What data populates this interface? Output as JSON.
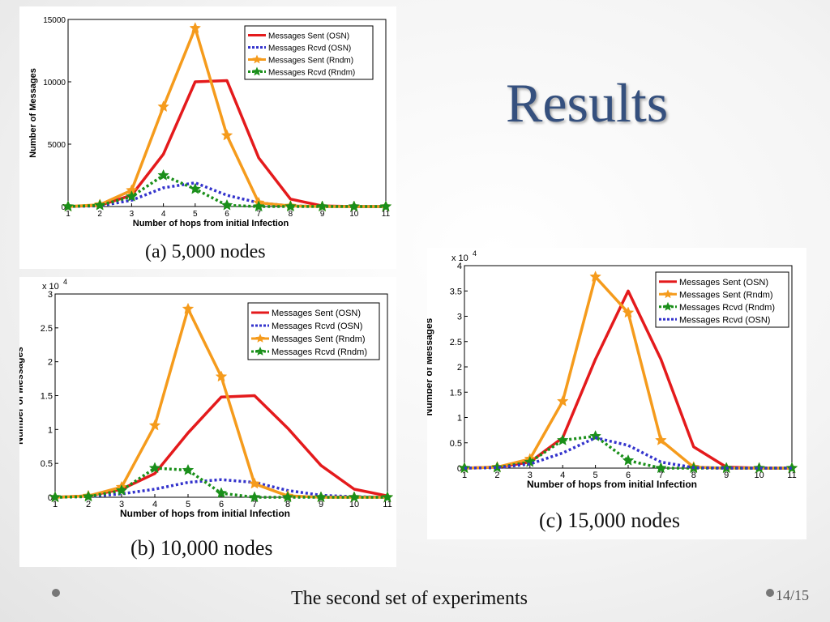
{
  "slide": {
    "title": "Results",
    "footer": "The second set of experiments",
    "page_number": "14/15"
  },
  "chart_data": [
    {
      "type": "line",
      "caption": "(a)  5,000  nodes",
      "xlabel": "Number of hops from initial Infection",
      "ylabel": "Number of Messages",
      "y_exponent_label": "",
      "x": [
        1,
        2,
        3,
        4,
        5,
        6,
        7,
        8,
        9,
        10,
        11
      ],
      "xlim": [
        1,
        11
      ],
      "ylim": [
        0,
        15000
      ],
      "yticks": [
        0,
        5000,
        10000,
        15000
      ],
      "ytick_labels": [
        "0",
        "5000",
        "10000",
        "15000"
      ],
      "legend_position": "top-right",
      "series": [
        {
          "name": "Messages Sent (OSN)",
          "color": "#e41a1c",
          "style": "solid",
          "marker": "none",
          "values": [
            0,
            100,
            900,
            4200,
            10000,
            10100,
            3900,
            600,
            50,
            0,
            0
          ]
        },
        {
          "name": "Messages Rcvd (OSN)",
          "color": "#3333cc",
          "style": "dotted",
          "marker": "none",
          "values": [
            0,
            50,
            500,
            1500,
            1900,
            900,
            300,
            50,
            0,
            0,
            0
          ]
        },
        {
          "name": "Messages Sent (Rndm)",
          "color": "#f59b1c",
          "style": "solid",
          "marker": "star",
          "values": [
            0,
            150,
            1300,
            8000,
            14300,
            5700,
            300,
            50,
            0,
            0,
            0
          ]
        },
        {
          "name": "Messages Rcvd (Rndm)",
          "color": "#1a8f1a",
          "style": "dotted",
          "marker": "star",
          "values": [
            0,
            100,
            800,
            2500,
            1400,
            100,
            0,
            0,
            0,
            0,
            0
          ]
        }
      ]
    },
    {
      "type": "line",
      "caption": "(b)  10,000  nodes",
      "xlabel": "Number of hops from initial Infection",
      "ylabel": "Number of Messages",
      "y_exponent_label": "x 10",
      "y_exponent_power": "4",
      "x": [
        1,
        2,
        3,
        4,
        5,
        6,
        7,
        8,
        9,
        10,
        11
      ],
      "xlim": [
        1,
        11
      ],
      "ylim": [
        0,
        3
      ],
      "yticks": [
        0,
        0.5,
        1,
        1.5,
        2,
        2.5,
        3
      ],
      "ytick_labels": [
        "0",
        "0.5",
        "1",
        "1.5",
        "2",
        "2.5",
        "3"
      ],
      "legend_position": "top-right",
      "series": [
        {
          "name": "Messages Sent (OSN)",
          "color": "#e41a1c",
          "style": "solid",
          "marker": "none",
          "values": [
            0,
            0.02,
            0.12,
            0.35,
            0.95,
            1.48,
            1.5,
            1.02,
            0.47,
            0.12,
            0.02
          ]
        },
        {
          "name": "Messages Rcvd (OSN)",
          "color": "#3333cc",
          "style": "dotted",
          "marker": "none",
          "values": [
            0,
            0.01,
            0.05,
            0.12,
            0.22,
            0.26,
            0.22,
            0.1,
            0.03,
            0.01,
            0
          ]
        },
        {
          "name": "Messages Sent (Rndm)",
          "color": "#f59b1c",
          "style": "solid",
          "marker": "star",
          "values": [
            0,
            0.02,
            0.15,
            1.06,
            2.78,
            1.78,
            0.2,
            0.02,
            0,
            0,
            0
          ]
        },
        {
          "name": "Messages Rcvd (Rndm)",
          "color": "#1a8f1a",
          "style": "dotted",
          "marker": "star",
          "values": [
            0,
            0.01,
            0.1,
            0.43,
            0.4,
            0.06,
            0,
            0,
            0,
            0,
            0
          ]
        }
      ]
    },
    {
      "type": "line",
      "caption": "(c)  15,000  nodes",
      "xlabel": "Number of hops from initial Infection",
      "ylabel": "Number of Messages",
      "y_exponent_label": "x 10",
      "y_exponent_power": "4",
      "x": [
        1,
        2,
        3,
        4,
        5,
        6,
        7,
        8,
        9,
        10,
        11
      ],
      "xlim": [
        1,
        11
      ],
      "ylim": [
        0,
        4
      ],
      "yticks": [
        0,
        0.5,
        1,
        1.5,
        2,
        2.5,
        3,
        3.5,
        4
      ],
      "ytick_labels": [
        "0",
        "0.5",
        "1",
        "1.5",
        "2",
        "2.5",
        "3",
        "3.5",
        "4"
      ],
      "legend_position": "top-right",
      "series": [
        {
          "name": "Messages Sent (OSN)",
          "color": "#e41a1c",
          "style": "solid",
          "marker": "none",
          "values": [
            0,
            0.02,
            0.12,
            0.6,
            2.15,
            3.5,
            2.15,
            0.42,
            0.02,
            0,
            0
          ]
        },
        {
          "name": "Messages Sent (Rndm)",
          "color": "#f59b1c",
          "style": "solid",
          "marker": "star",
          "values": [
            0,
            0.02,
            0.18,
            1.32,
            3.78,
            3.07,
            0.55,
            0.02,
            0,
            0,
            0
          ]
        },
        {
          "name": "Messages Rcvd (Rndm)",
          "color": "#1a8f1a",
          "style": "dotted",
          "marker": "star",
          "values": [
            0,
            0.01,
            0.12,
            0.55,
            0.63,
            0.15,
            0,
            0,
            0,
            0,
            0
          ]
        },
        {
          "name": "Messages Rcvd (OSN)",
          "color": "#3333cc",
          "style": "dotted",
          "marker": "none",
          "values": [
            0,
            0.01,
            0.08,
            0.3,
            0.6,
            0.45,
            0.12,
            0.01,
            0,
            0,
            0
          ]
        }
      ]
    }
  ]
}
